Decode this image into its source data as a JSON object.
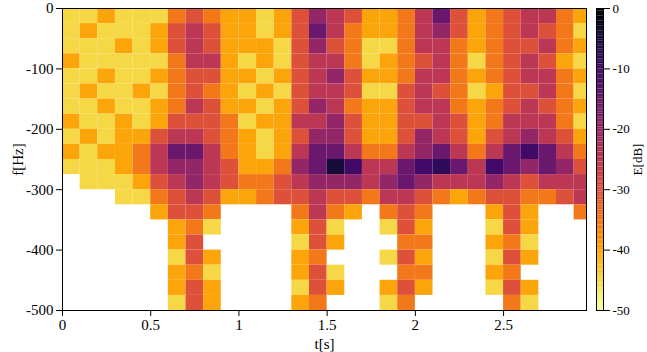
{
  "chart_data": {
    "type": "heatmap",
    "x_label": "t[s]",
    "y_label": "f[Hz]",
    "xlim": [
      0,
      2.97
    ],
    "ylim": [
      -500,
      0
    ],
    "xticks": [
      0,
      0.5,
      1,
      1.5,
      2,
      2.5
    ],
    "yticks": [
      0,
      -100,
      -200,
      -300,
      -400,
      -500
    ],
    "color": "inferno",
    "x_bins": [
      0,
      0.1,
      0.2,
      0.3,
      0.4,
      0.5,
      0.6,
      0.7,
      0.8,
      0.9,
      1,
      1.1,
      1.2,
      1.3,
      1.4,
      1.5,
      1.6,
      1.7,
      1.8,
      1.9,
      2,
      2.1,
      2.2,
      2.3,
      2.4,
      2.5,
      2.6,
      2.7,
      2.8,
      2.9,
      3
    ],
    "y_bins": [
      0,
      -25,
      -50,
      -75,
      -100,
      -125,
      -150,
      -175,
      -200,
      -225,
      -250,
      -275,
      -300,
      -325,
      -350,
      -375,
      -400,
      -425,
      -450,
      -475,
      -500
    ],
    "values": [
      [
        -45,
        -45,
        -40,
        -45,
        -45,
        -45,
        -35,
        -30,
        -35,
        -40,
        -40,
        -45,
        -40,
        -30,
        -20,
        -25,
        -30,
        -40,
        -40,
        -35,
        -25,
        -15,
        -30,
        -40,
        -35,
        -30,
        -25,
        -25,
        -35,
        -40
      ],
      [
        -45,
        -40,
        -45,
        -45,
        -45,
        -40,
        -30,
        -25,
        -30,
        -40,
        -40,
        -45,
        -40,
        -30,
        -15,
        -25,
        -35,
        -40,
        -40,
        -35,
        -25,
        -20,
        -30,
        -40,
        -35,
        -30,
        -25,
        -30,
        -35,
        -45
      ],
      [
        -45,
        -45,
        -45,
        -40,
        -45,
        -40,
        -30,
        -25,
        -30,
        -40,
        -40,
        -40,
        -45,
        -30,
        -20,
        -30,
        -35,
        -45,
        -45,
        -35,
        -25,
        -25,
        -35,
        -40,
        -35,
        -30,
        -30,
        -25,
        -35,
        -40
      ],
      [
        -40,
        -45,
        -45,
        -45,
        -45,
        -45,
        -35,
        -25,
        -25,
        -40,
        -45,
        -40,
        -45,
        -30,
        -25,
        -25,
        -35,
        -45,
        -40,
        -35,
        -30,
        -25,
        -35,
        -45,
        -35,
        -30,
        -25,
        -30,
        -40,
        -45
      ],
      [
        -45,
        -45,
        -40,
        -45,
        -45,
        -40,
        -35,
        -30,
        -30,
        -40,
        -40,
        -45,
        -40,
        -30,
        -25,
        -20,
        -30,
        -40,
        -40,
        -35,
        -25,
        -25,
        -35,
        -40,
        -35,
        -30,
        -25,
        -25,
        -35,
        -40
      ],
      [
        -45,
        -40,
        -45,
        -45,
        -40,
        -45,
        -35,
        -30,
        -35,
        -40,
        -45,
        -40,
        -45,
        -30,
        -25,
        -25,
        -30,
        -45,
        -45,
        -30,
        -25,
        -30,
        -35,
        -45,
        -40,
        -30,
        -30,
        -25,
        -35,
        -45
      ],
      [
        -45,
        -45,
        -40,
        -45,
        -45,
        -40,
        -35,
        -25,
        -30,
        -40,
        -40,
        -45,
        -40,
        -30,
        -20,
        -25,
        -35,
        -40,
        -40,
        -30,
        -25,
        -25,
        -35,
        -40,
        -35,
        -30,
        -25,
        -30,
        -35,
        -40
      ],
      [
        -40,
        -45,
        -45,
        -40,
        -45,
        -40,
        -30,
        -30,
        -30,
        -35,
        -45,
        -40,
        -40,
        -25,
        -25,
        -20,
        -30,
        -40,
        -40,
        -30,
        -30,
        -25,
        -30,
        -40,
        -35,
        -25,
        -25,
        -25,
        -35,
        -45
      ],
      [
        -45,
        -40,
        -45,
        -40,
        -40,
        -30,
        -25,
        -25,
        -30,
        -35,
        -40,
        -45,
        -40,
        -30,
        -20,
        -20,
        -30,
        -40,
        -40,
        -30,
        -20,
        -25,
        -30,
        -40,
        -30,
        -25,
        -20,
        -25,
        -30,
        -40
      ],
      [
        -40,
        -45,
        -40,
        -40,
        -35,
        -25,
        -15,
        -15,
        -25,
        -35,
        -40,
        -45,
        -40,
        -25,
        -15,
        -15,
        -25,
        -35,
        -35,
        -25,
        -20,
        -15,
        -25,
        -35,
        -25,
        -15,
        -10,
        -15,
        -25,
        -35
      ],
      [
        -45,
        -45,
        -45,
        -40,
        -35,
        -25,
        -20,
        -20,
        -25,
        -30,
        -40,
        -40,
        -35,
        -20,
        -15,
        -5,
        -10,
        -25,
        -25,
        -15,
        -10,
        -8,
        -15,
        -25,
        -10,
        -15,
        -20,
        -15,
        -20,
        -30
      ],
      [
        null,
        -45,
        -45,
        -45,
        -40,
        -30,
        -25,
        -20,
        -25,
        -30,
        -35,
        -35,
        -30,
        -25,
        -20,
        -20,
        -20,
        -25,
        -20,
        -15,
        -20,
        -25,
        -25,
        -25,
        -20,
        -25,
        -30,
        -25,
        -25,
        -25
      ],
      [
        null,
        null,
        null,
        -45,
        -45,
        -35,
        -30,
        -25,
        -30,
        -40,
        -40,
        -35,
        -30,
        -30,
        -25,
        -30,
        -30,
        -35,
        -25,
        -25,
        -30,
        -35,
        -40,
        -35,
        -30,
        -30,
        -35,
        -35,
        -30,
        -25
      ],
      [
        null,
        null,
        null,
        null,
        null,
        -40,
        -30,
        -30,
        -35,
        null,
        null,
        null,
        null,
        -35,
        -25,
        -35,
        -40,
        null,
        -35,
        -30,
        -35,
        null,
        null,
        null,
        -40,
        -30,
        -40,
        null,
        null,
        -35
      ],
      [
        null,
        null,
        null,
        null,
        null,
        null,
        -40,
        -35,
        -45,
        null,
        null,
        null,
        null,
        -40,
        -30,
        -45,
        null,
        null,
        -45,
        -30,
        -40,
        null,
        null,
        null,
        -45,
        -30,
        -40,
        null,
        null,
        null
      ],
      [
        null,
        null,
        null,
        null,
        null,
        null,
        -40,
        -30,
        null,
        null,
        null,
        null,
        null,
        -45,
        -30,
        -40,
        null,
        null,
        null,
        -35,
        -35,
        null,
        null,
        null,
        -40,
        -35,
        -45,
        null,
        null,
        null
      ],
      [
        null,
        null,
        null,
        null,
        null,
        null,
        -45,
        -30,
        -40,
        null,
        null,
        null,
        null,
        -40,
        -35,
        null,
        null,
        null,
        -45,
        -30,
        -40,
        null,
        null,
        null,
        -45,
        -30,
        -40,
        null,
        null,
        null
      ],
      [
        null,
        null,
        null,
        null,
        null,
        null,
        -40,
        -35,
        -45,
        null,
        null,
        null,
        null,
        -40,
        -30,
        -45,
        null,
        null,
        null,
        -35,
        -35,
        null,
        null,
        null,
        -40,
        -35,
        null,
        null,
        null,
        null
      ],
      [
        null,
        null,
        null,
        null,
        null,
        null,
        -40,
        -30,
        -40,
        null,
        null,
        null,
        null,
        -45,
        -30,
        -40,
        null,
        null,
        -40,
        -30,
        -40,
        null,
        null,
        null,
        -45,
        -30,
        -40,
        null,
        null,
        null
      ],
      [
        null,
        null,
        null,
        null,
        null,
        null,
        -45,
        -30,
        -40,
        null,
        null,
        null,
        null,
        -40,
        -35,
        null,
        null,
        null,
        -45,
        -35,
        null,
        null,
        null,
        null,
        null,
        -35,
        -45,
        null,
        null,
        null
      ]
    ],
    "colorbar": {
      "label": "E[dB]",
      "lim": [
        -50,
        0
      ],
      "ticks": [
        0,
        -10,
        -20,
        -30,
        -40,
        -50
      ]
    }
  }
}
